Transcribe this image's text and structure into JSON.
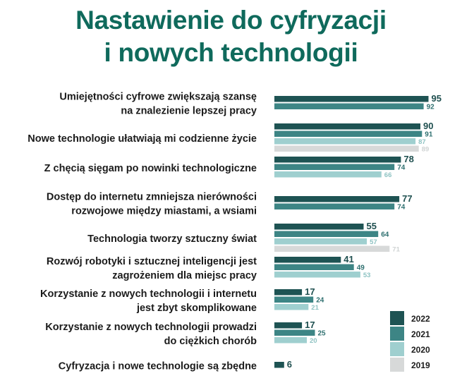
{
  "chart_data": {
    "type": "bar",
    "orientation": "horizontal",
    "title_lines": [
      "Nastawienie do cyfryzacji",
      "i nowych technologii"
    ],
    "categories": [
      [
        "Umiejętności cyfrowe zwiększają szansę",
        "na znalezienie lepszej pracy"
      ],
      [
        "Nowe technologie ułatwiają mi codzienne życie"
      ],
      [
        "Z chęcią sięgam po nowinki technologiczne"
      ],
      [
        "Dostęp do internetu zmniejsza nierówności",
        "rozwojowe między miastami, a wsiami"
      ],
      [
        "Technologia tworzy sztuczny świat"
      ],
      [
        "Rozwój robotyki i sztucznej inteligencji jest",
        "zagrożeniem dla miejsc pracy"
      ],
      [
        "Korzystanie z nowych technologii i internetu",
        "jest zbyt skomplikowane"
      ],
      [
        "Korzystanie z nowych technologii prowadzi",
        "do ciężkich chorób"
      ],
      [
        "Cyfryzacja i nowe technologie są zbędne"
      ]
    ],
    "series": [
      {
        "name": "2022",
        "color": "#1e5353",
        "values": [
          95,
          90,
          78,
          77,
          55,
          41,
          17,
          17,
          6
        ]
      },
      {
        "name": "2021",
        "color": "#3d8585",
        "values": [
          92,
          91,
          74,
          74,
          64,
          49,
          24,
          25,
          null
        ]
      },
      {
        "name": "2020",
        "color": "#9fcfcf",
        "values": [
          null,
          87,
          66,
          null,
          57,
          53,
          21,
          20,
          null
        ]
      },
      {
        "name": "2019",
        "color": "#d7d9d9",
        "values": [
          null,
          89,
          null,
          null,
          71,
          null,
          null,
          null,
          null
        ]
      }
    ],
    "xlim": [
      0,
      100
    ],
    "legend": "bottom-right",
    "grid": false
  }
}
